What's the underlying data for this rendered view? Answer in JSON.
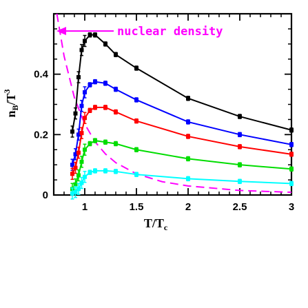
{
  "chart_data": {
    "type": "line",
    "xlim": [
      0.7,
      3.0
    ],
    "ylim": [
      0,
      0.6
    ],
    "xticks": [
      {
        "v": 1,
        "label": "1"
      },
      {
        "v": 1.5,
        "label": "1.5"
      },
      {
        "v": 2,
        "label": "2"
      },
      {
        "v": 2.5,
        "label": "2.5"
      },
      {
        "v": 3,
        "label": "3"
      }
    ],
    "yticks": [
      {
        "v": 0,
        "label": "0"
      },
      {
        "v": 0.2,
        "label": "0.2"
      },
      {
        "v": 0.4,
        "label": "0.4"
      }
    ],
    "xlabel": {
      "main": "T/T",
      "sub": "c"
    },
    "ylabel": {
      "main": "n",
      "sub": "B",
      "mid": "/T",
      "sup": "3"
    },
    "annotation": {
      "text": "nuclear density",
      "color": "#ff00ff"
    },
    "series": [
      {
        "color": "#000000",
        "x": [
          0.88,
          0.91,
          0.94,
          0.97,
          1.0,
          1.05,
          1.1,
          1.2,
          1.3,
          1.5,
          2.0,
          2.5,
          3.0
        ],
        "y": [
          0.21,
          0.27,
          0.39,
          0.48,
          0.51,
          0.53,
          0.53,
          0.5,
          0.465,
          0.42,
          0.32,
          0.26,
          0.215
        ]
      },
      {
        "color": "#0000ff",
        "x": [
          0.88,
          0.91,
          0.94,
          0.97,
          1.0,
          1.05,
          1.1,
          1.2,
          1.3,
          1.5,
          2.0,
          2.5,
          3.0
        ],
        "y": [
          0.1,
          0.135,
          0.2,
          0.295,
          0.34,
          0.365,
          0.375,
          0.37,
          0.35,
          0.315,
          0.242,
          0.2,
          0.167
        ]
      },
      {
        "color": "#ff0000",
        "x": [
          0.88,
          0.91,
          0.94,
          0.97,
          1.0,
          1.05,
          1.1,
          1.2,
          1.3,
          1.5,
          2.0,
          2.5,
          3.0
        ],
        "y": [
          0.07,
          0.09,
          0.14,
          0.205,
          0.255,
          0.28,
          0.29,
          0.29,
          0.275,
          0.245,
          0.194,
          0.16,
          0.135
        ]
      },
      {
        "color": "#00dd00",
        "x": [
          0.88,
          0.91,
          0.94,
          0.97,
          1.0,
          1.05,
          1.1,
          1.2,
          1.3,
          1.5,
          2.0,
          2.5,
          3.0
        ],
        "y": [
          0.02,
          0.035,
          0.065,
          0.11,
          0.15,
          0.17,
          0.18,
          0.175,
          0.17,
          0.15,
          0.12,
          0.1,
          0.086
        ]
      },
      {
        "color": "#00ffff",
        "x": [
          0.88,
          0.91,
          0.94,
          0.97,
          1.0,
          1.05,
          1.1,
          1.2,
          1.3,
          1.5,
          2.0,
          2.5,
          3.0
        ],
        "y": [
          0.005,
          0.01,
          0.02,
          0.04,
          0.06,
          0.075,
          0.08,
          0.08,
          0.078,
          0.068,
          0.054,
          0.045,
          0.038
        ]
      }
    ],
    "reference_curve": {
      "color": "#ff00ff",
      "style": "dashed",
      "x": [
        0.73,
        0.8,
        0.9,
        1.0,
        1.1,
        1.2,
        1.3,
        1.5,
        1.75,
        2.0,
        2.5,
        3.0
      ],
      "y": [
        0.6,
        0.46,
        0.322,
        0.235,
        0.176,
        0.136,
        0.107,
        0.07,
        0.044,
        0.03,
        0.015,
        0.009
      ]
    }
  }
}
